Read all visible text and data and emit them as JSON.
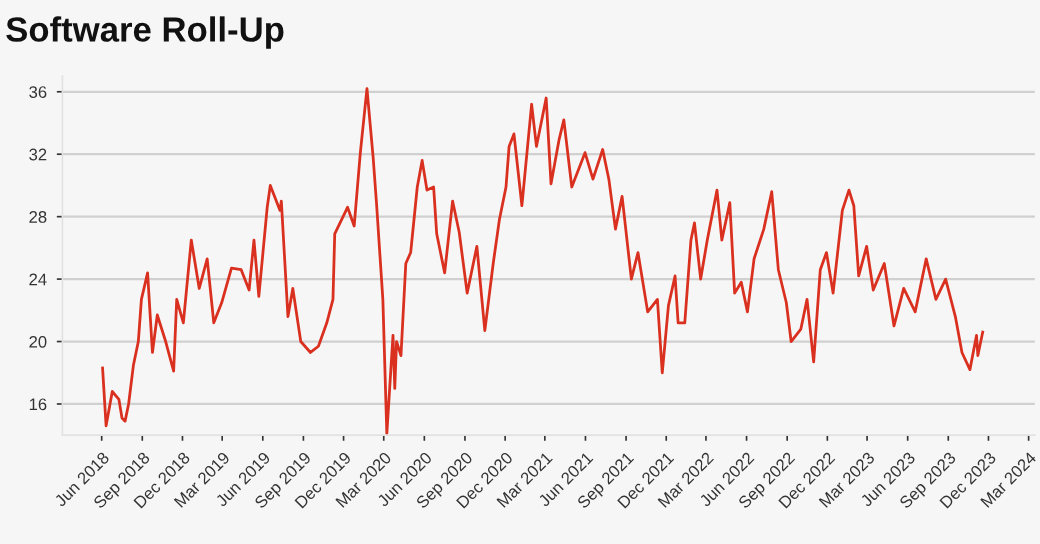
{
  "chart_data": {
    "type": "line",
    "title": "Software Roll-Up",
    "x": [
      "2018-06-03",
      "2018-06-11",
      "2018-06-25",
      "2018-07-10",
      "2018-07-17",
      "2018-07-24",
      "2018-08-01",
      "2018-08-12",
      "2018-08-23",
      "2018-08-30",
      "2018-09-13",
      "2018-09-24",
      "2018-10-05",
      "2018-10-24",
      "2018-11-11",
      "2018-11-18",
      "2018-12-03",
      "2018-12-21",
      "2019-01-08",
      "2019-01-26",
      "2019-02-10",
      "2019-02-28",
      "2019-03-22",
      "2019-04-13",
      "2019-05-01",
      "2019-05-12",
      "2019-05-23",
      "2019-06-11",
      "2019-06-18",
      "2019-07-10",
      "2019-07-13",
      "2019-07-28",
      "2019-08-08",
      "2019-08-26",
      "2019-09-17",
      "2019-10-05",
      "2019-10-24",
      "2019-11-07",
      "2019-11-11",
      "2019-12-10",
      "2019-12-25",
      "2020-01-08",
      "2020-01-23",
      "2020-02-06",
      "2020-02-14",
      "2020-02-28",
      "2020-03-08",
      "2020-03-22",
      "2020-03-26",
      "2020-03-30",
      "2020-04-09",
      "2020-04-20",
      "2020-05-01",
      "2020-05-16",
      "2020-05-27",
      "2020-06-07",
      "2020-06-22",
      "2020-06-29",
      "2020-07-17",
      "2020-08-04",
      "2020-08-19",
      "2020-09-06",
      "2020-09-28",
      "2020-10-16",
      "2020-11-04",
      "2020-11-18",
      "2020-12-03",
      "2020-12-10",
      "2020-12-21",
      "2021-01-08",
      "2021-01-30",
      "2021-02-10",
      "2021-03-04",
      "2021-03-15",
      "2021-04-02",
      "2021-04-13",
      "2021-05-01",
      "2021-05-31",
      "2021-06-18",
      "2021-07-10",
      "2021-07-24",
      "2021-08-08",
      "2021-08-23",
      "2021-09-13",
      "2021-09-28",
      "2021-10-20",
      "2021-11-11",
      "2021-11-22",
      "2021-12-06",
      "2021-12-21",
      "2021-12-28",
      "2022-01-12",
      "2022-01-26",
      "2022-02-03",
      "2022-02-17",
      "2022-03-04",
      "2022-03-26",
      "2022-04-06",
      "2022-04-24",
      "2022-05-05",
      "2022-05-20",
      "2022-06-03",
      "2022-06-18",
      "2022-07-10",
      "2022-07-28",
      "2022-08-12",
      "2022-08-30",
      "2022-09-10",
      "2022-10-02",
      "2022-10-16",
      "2022-10-31",
      "2022-11-15",
      "2022-11-29",
      "2022-12-14",
      "2023-01-04",
      "2023-01-19",
      "2023-01-30",
      "2023-02-10",
      "2023-02-28",
      "2023-03-15",
      "2023-04-09",
      "2023-05-01",
      "2023-05-23",
      "2023-06-18",
      "2023-07-13",
      "2023-08-04",
      "2023-08-26",
      "2023-09-17",
      "2023-10-02",
      "2023-10-20",
      "2023-11-04",
      "2023-11-07",
      "2023-11-18"
    ],
    "series": [
      {
        "color": "#d9301f",
        "values": [
          18.3,
          14.6,
          16.8,
          16.3,
          15.1,
          14.9,
          16.0,
          18.5,
          20.0,
          22.7,
          24.4,
          19.3,
          21.7,
          20.0,
          18.1,
          22.7,
          21.2,
          26.5,
          23.4,
          25.3,
          21.2,
          22.5,
          24.7,
          24.6,
          23.3,
          26.5,
          22.9,
          28.6,
          30.0,
          28.4,
          29.0,
          21.6,
          23.4,
          20.0,
          19.3,
          19.7,
          21.2,
          22.7,
          26.9,
          28.6,
          27.4,
          32.1,
          36.2,
          31.8,
          28.7,
          22.7,
          14.1,
          20.4,
          17.0,
          20.0,
          19.1,
          25.0,
          25.7,
          29.9,
          31.6,
          29.7,
          29.9,
          26.9,
          24.4,
          29.0,
          27.0,
          23.1,
          26.1,
          20.7,
          25.0,
          27.8,
          29.9,
          32.5,
          33.3,
          28.7,
          35.2,
          32.5,
          35.6,
          30.1,
          32.9,
          34.2,
          29.9,
          32.1,
          30.4,
          32.3,
          30.4,
          27.2,
          29.3,
          24.0,
          25.7,
          21.9,
          22.7,
          18.0,
          22.3,
          24.2,
          21.2,
          21.2,
          26.5,
          27.6,
          24.0,
          26.5,
          29.7,
          26.5,
          28.9,
          23.1,
          23.8,
          21.9,
          25.3,
          27.2,
          29.6,
          24.6,
          22.5,
          20.0,
          20.8,
          22.7,
          18.7,
          24.6,
          25.7,
          23.1,
          28.4,
          29.7,
          28.7,
          24.2,
          26.1,
          23.3,
          25.0,
          21.0,
          23.4,
          21.9,
          25.3,
          22.7,
          24.0,
          21.6,
          19.3,
          18.2,
          20.4,
          19.1,
          20.6
        ]
      }
    ],
    "xlim": [
      "2018-03-04",
      "2024-03-15"
    ],
    "xticks": [
      {
        "value": "2018-06-01",
        "label": "Jun 2018"
      },
      {
        "value": "2018-09-01",
        "label": "Sep 2018"
      },
      {
        "value": "2018-12-01",
        "label": "Dec 2018"
      },
      {
        "value": "2019-03-01",
        "label": "Mar 2019"
      },
      {
        "value": "2019-06-01",
        "label": "Jun 2019"
      },
      {
        "value": "2019-09-01",
        "label": "Sep 2019"
      },
      {
        "value": "2019-12-01",
        "label": "Dec 2019"
      },
      {
        "value": "2020-03-01",
        "label": "Mar 2020"
      },
      {
        "value": "2020-06-01",
        "label": "Jun 2020"
      },
      {
        "value": "2020-09-01",
        "label": "Sep 2020"
      },
      {
        "value": "2020-12-01",
        "label": "Dec 2020"
      },
      {
        "value": "2021-03-01",
        "label": "Mar 2021"
      },
      {
        "value": "2021-06-01",
        "label": "Jun 2021"
      },
      {
        "value": "2021-09-01",
        "label": "Sep 2021"
      },
      {
        "value": "2021-12-01",
        "label": "Dec 2021"
      },
      {
        "value": "2022-03-01",
        "label": "Mar 2022"
      },
      {
        "value": "2022-06-01",
        "label": "Jun 2022"
      },
      {
        "value": "2022-09-01",
        "label": "Sep 2022"
      },
      {
        "value": "2022-12-01",
        "label": "Dec 2022"
      },
      {
        "value": "2023-03-01",
        "label": "Mar 2023"
      },
      {
        "value": "2023-06-01",
        "label": "Jun 2023"
      },
      {
        "value": "2023-09-01",
        "label": "Sep 2023"
      },
      {
        "value": "2023-12-01",
        "label": "Dec 2023"
      },
      {
        "value": "2024-03-01",
        "label": "Mar 2024"
      }
    ],
    "ylim": [
      14,
      37
    ],
    "yticks": [
      16,
      20,
      24,
      28,
      32,
      36
    ],
    "grid": "y",
    "legend": false,
    "marker": "none",
    "line_style": "solid"
  }
}
